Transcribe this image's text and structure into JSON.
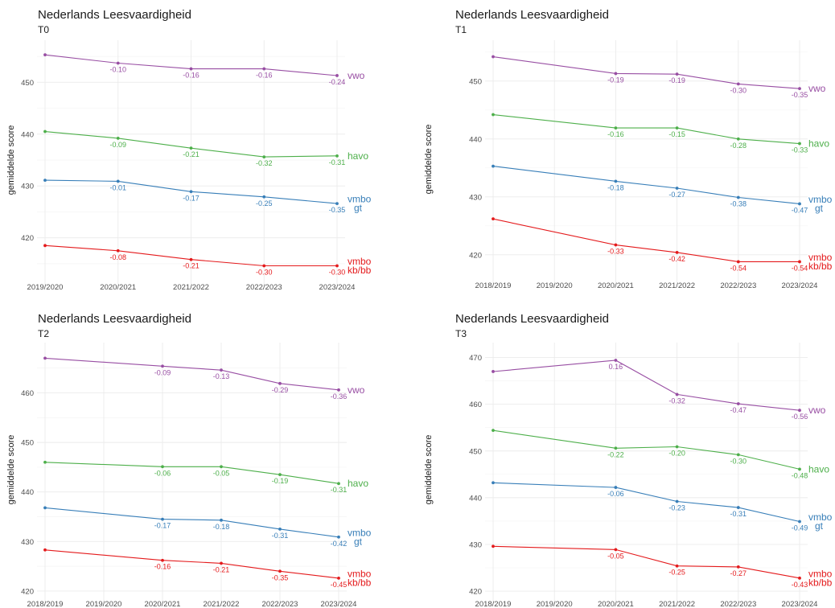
{
  "chart_data": [
    {
      "type": "line",
      "title": "Nederlands Leesvaardigheid",
      "subtitle": "T0",
      "ylabel": "gemiddelde score",
      "xlabel": "",
      "categories": [
        "2019/2020",
        "2020/2021",
        "2021/2022",
        "2022/2023",
        "2023/2024"
      ],
      "ylim": [
        412.5,
        457.5
      ],
      "yticks": [
        420,
        430,
        440,
        450
      ],
      "grid": true,
      "series": [
        {
          "name": "vwo",
          "color": "#984EA3",
          "values": [
            455.3,
            453.7,
            452.6,
            452.6,
            451.3
          ],
          "labels": [
            "",
            "-0.10",
            "-0.16",
            "-0.16",
            "-0.24"
          ]
        },
        {
          "name": "havo",
          "color": "#4DAF4A",
          "values": [
            440.5,
            439.2,
            437.3,
            435.6,
            435.8
          ],
          "labels": [
            "",
            "-0.09",
            "-0.21",
            "-0.32",
            "-0.31"
          ]
        },
        {
          "name": "vmbo gt",
          "color": "#377EB8",
          "values": [
            431.1,
            430.9,
            428.9,
            427.9,
            426.6
          ],
          "labels": [
            "",
            "-0.01",
            "-0.17",
            "-0.25",
            "-0.35"
          ]
        },
        {
          "name": "vmbo kb/bb",
          "color": "#E41A1C",
          "values": [
            418.5,
            417.5,
            415.8,
            414.6,
            414.6
          ],
          "labels": [
            "",
            "-0.08",
            "-0.21",
            "-0.30",
            "-0.30"
          ]
        }
      ]
    },
    {
      "type": "line",
      "title": "Nederlands Leesvaardigheid",
      "subtitle": "T1",
      "ylabel": "gemiddelde score",
      "xlabel": "",
      "categories": [
        "2018/2019",
        "2019/2020",
        "2020/2021",
        "2021/2022",
        "2022/2023",
        "2023/2024"
      ],
      "ylim": [
        416.5,
        456.5
      ],
      "yticks": [
        420,
        430,
        440,
        450
      ],
      "grid": true,
      "series": [
        {
          "name": "vwo",
          "color": "#984EA3",
          "values": [
            454.2,
            null,
            451.3,
            451.2,
            449.5,
            448.7
          ],
          "labels": [
            "",
            "",
            "-0.19",
            "-0.19",
            "-0.30",
            "-0.35"
          ]
        },
        {
          "name": "havo",
          "color": "#4DAF4A",
          "values": [
            444.2,
            null,
            441.9,
            441.9,
            440.0,
            439.2
          ],
          "labels": [
            "",
            "",
            "-0.16",
            "-0.15",
            "-0.28",
            "-0.33"
          ]
        },
        {
          "name": "vmbo gt",
          "color": "#377EB8",
          "values": [
            435.3,
            null,
            432.7,
            431.5,
            429.9,
            428.8
          ],
          "labels": [
            "",
            "",
            "-0.18",
            "-0.27",
            "-0.38",
            "-0.47"
          ]
        },
        {
          "name": "vmbo kb/bb",
          "color": "#E41A1C",
          "values": [
            426.2,
            null,
            421.7,
            420.4,
            418.8,
            418.8
          ],
          "labels": [
            "",
            "",
            "-0.33",
            "-0.42",
            "-0.54",
            "-0.54"
          ]
        }
      ]
    },
    {
      "type": "line",
      "title": "Nederlands Leesvaardigheid",
      "subtitle": "T2",
      "ylabel": "gemiddelde score",
      "xlabel": "",
      "categories": [
        "2018/2019",
        "2019/2020",
        "2020/2021",
        "2021/2022",
        "2022/2023",
        "2023/2024"
      ],
      "ylim": [
        419.5,
        469.5
      ],
      "yticks": [
        420,
        430,
        440,
        450,
        460
      ],
      "grid": true,
      "series": [
        {
          "name": "vwo",
          "color": "#984EA3",
          "values": [
            467.0,
            null,
            465.4,
            464.6,
            461.9,
            460.6
          ],
          "labels": [
            "",
            "",
            "-0.09",
            "-0.13",
            "-0.29",
            "-0.36"
          ]
        },
        {
          "name": "havo",
          "color": "#4DAF4A",
          "values": [
            446.0,
            null,
            445.1,
            445.1,
            443.5,
            441.7
          ],
          "labels": [
            "",
            "",
            "-0.06",
            "-0.05",
            "-0.19",
            "-0.31"
          ]
        },
        {
          "name": "vmbo gt",
          "color": "#377EB8",
          "values": [
            436.8,
            null,
            434.5,
            434.3,
            432.5,
            430.9
          ],
          "labels": [
            "",
            "",
            "-0.17",
            "-0.18",
            "-0.31",
            "-0.42"
          ]
        },
        {
          "name": "vmbo kb/bb",
          "color": "#E41A1C",
          "values": [
            428.3,
            null,
            426.2,
            425.6,
            424.0,
            422.6
          ],
          "labels": [
            "",
            "",
            "-0.16",
            "-0.21",
            "-0.35",
            "-0.45"
          ]
        }
      ]
    },
    {
      "type": "line",
      "title": "Nederlands Leesvaardigheid",
      "subtitle": "T3",
      "ylabel": "gemiddelde score",
      "xlabel": "",
      "categories": [
        "2018/2019",
        "2019/2020",
        "2020/2021",
        "2021/2022",
        "2022/2023",
        "2023/2024"
      ],
      "ylim": [
        419.5,
        472.5
      ],
      "yticks": [
        420,
        430,
        440,
        450,
        460,
        470
      ],
      "grid": true,
      "series": [
        {
          "name": "vwo",
          "color": "#984EA3",
          "values": [
            467.0,
            null,
            469.4,
            462.1,
            460.1,
            458.7
          ],
          "labels": [
            "",
            "",
            "0.16",
            "-0.32",
            "-0.47",
            "-0.56"
          ]
        },
        {
          "name": "havo",
          "color": "#4DAF4A",
          "values": [
            454.4,
            null,
            450.6,
            450.9,
            449.2,
            446.1
          ],
          "labels": [
            "",
            "",
            "-0.22",
            "-0.20",
            "-0.30",
            "-0.48"
          ]
        },
        {
          "name": "vmbo gt",
          "color": "#377EB8",
          "values": [
            443.2,
            null,
            442.2,
            439.2,
            437.9,
            434.9
          ],
          "labels": [
            "",
            "",
            "-0.06",
            "-0.23",
            "-0.31",
            "-0.49"
          ]
        },
        {
          "name": "vmbo kb/bb",
          "color": "#E41A1C",
          "values": [
            429.6,
            null,
            428.9,
            425.4,
            425.2,
            422.8
          ],
          "labels": [
            "",
            "",
            "-0.05",
            "-0.25",
            "-0.27",
            "-0.43"
          ]
        }
      ]
    }
  ]
}
